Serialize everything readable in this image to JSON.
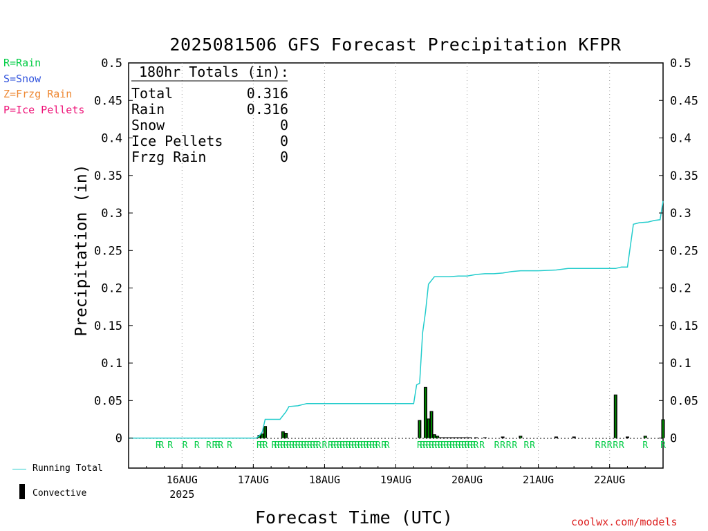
{
  "title": "2025081506 GFS Forecast Precipitation KFPR",
  "key": {
    "rain": "R=Rain",
    "snow": "S=Snow",
    "frzg": "Z=Frzg Rain",
    "ice": "P=Ice Pellets"
  },
  "colors": {
    "running_total": "#22cccc",
    "convective": "#000000",
    "total_precip_bar": "#008800",
    "rain_marker": "#00cc44",
    "grid": "#999999",
    "credit": "#dd2222"
  },
  "legend": {
    "running_total": "Running Total",
    "convective": "Convective"
  },
  "credit": "coolwx.com/models",
  "chart_data": {
    "type": "bar",
    "title": "2025081506 GFS Forecast Precipitation KFPR",
    "xlabel": "Forecast Time (UTC)",
    "ylabel": "Precipitation (in)",
    "ylim": [
      -0.04,
      0.5
    ],
    "yticks": [
      0,
      0.05,
      0.1,
      0.15,
      0.2,
      0.25,
      0.3,
      0.35,
      0.4,
      0.45,
      0.5
    ],
    "ytick_labels": [
      "0",
      "0.05",
      "0.1",
      "0.15",
      "0.2",
      "0.25",
      "0.3",
      "0.35",
      "0.4",
      "0.45",
      "0.5"
    ],
    "x_unit": "forecast hour",
    "xlim": [
      0,
      180
    ],
    "xticks": [
      18,
      42,
      66,
      90,
      114,
      138,
      162
    ],
    "xtick_labels": [
      "16AUG",
      "17AUG",
      "18AUG",
      "19AUG",
      "20AUG",
      "21AUG",
      "22AUG"
    ],
    "xtick_sublabel": "2025",
    "grid": "vertical dotted",
    "totals": {
      "header": "180hr Totals (in):",
      "rows": [
        {
          "label": "Total",
          "value": "0.316"
        },
        {
          "label": "Rain",
          "value": "0.316"
        },
        {
          "label": "Snow",
          "value": "0"
        },
        {
          "label": "Ice Pellets",
          "value": "0"
        },
        {
          "label": "Frzg Rain",
          "value": "0"
        }
      ]
    },
    "series": [
      {
        "name": "Running Total",
        "type": "line",
        "x": [
          0,
          43,
          44,
          45,
          46,
          51,
          53,
          54,
          57,
          60,
          66,
          72,
          90,
          96,
          97,
          98,
          99,
          100,
          101,
          102,
          103,
          104,
          105,
          108,
          111,
          114,
          117,
          120,
          121,
          123,
          126,
          129,
          132,
          138,
          144,
          148,
          150,
          154,
          156,
          160,
          162,
          164,
          166,
          168,
          170,
          172,
          175,
          177,
          179,
          180
        ],
        "y": [
          0,
          0,
          0.003,
          0.008,
          0.025,
          0.025,
          0.035,
          0.042,
          0.043,
          0.046,
          0.046,
          0.046,
          0.046,
          0.046,
          0.071,
          0.073,
          0.14,
          0.168,
          0.205,
          0.21,
          0.215,
          0.215,
          0.215,
          0.215,
          0.216,
          0.216,
          0.218,
          0.219,
          0.219,
          0.219,
          0.22,
          0.222,
          0.223,
          0.223,
          0.224,
          0.226,
          0.226,
          0.226,
          0.226,
          0.226,
          0.226,
          0.226,
          0.228,
          0.228,
          0.285,
          0.287,
          0.288,
          0.29,
          0.291,
          0.316
        ]
      },
      {
        "name": "Convective",
        "type": "bar",
        "x": [
          44,
          45,
          46,
          52,
          53,
          98,
          100,
          101,
          102,
          103,
          104,
          105,
          106,
          107,
          108,
          109,
          110,
          111,
          112,
          113,
          114,
          115,
          117,
          120,
          126,
          132,
          144,
          150,
          164,
          168,
          174,
          180
        ],
        "y": [
          0.004,
          0.006,
          0.016,
          0.009,
          0.007,
          0.024,
          0.068,
          0.026,
          0.036,
          0.005,
          0.003,
          0.001,
          0.001,
          0.001,
          0.001,
          0.001,
          0.001,
          0.001,
          0.001,
          0.001,
          0.001,
          0.001,
          0.001,
          0.001,
          0.002,
          0.003,
          0.002,
          0.002,
          0.058,
          0.002,
          0.003,
          0.025
        ]
      }
    ],
    "type_markers": {
      "label": "R",
      "x": [
        10,
        11,
        14,
        19,
        23,
        27,
        29,
        30,
        31,
        34,
        44,
        45,
        46,
        49,
        50,
        51,
        52,
        53,
        54,
        55,
        56,
        57,
        58,
        59,
        60,
        61,
        62,
        63,
        64,
        66,
        68,
        69,
        70,
        71,
        72,
        73,
        74,
        75,
        76,
        77,
        78,
        79,
        80,
        81,
        82,
        83,
        84,
        86,
        87,
        98,
        99,
        100,
        101,
        102,
        103,
        104,
        105,
        106,
        107,
        108,
        109,
        110,
        111,
        112,
        113,
        114,
        115,
        116,
        117,
        119,
        124,
        126,
        128,
        130,
        134,
        136,
        158,
        160,
        162,
        164,
        166,
        174,
        180
      ]
    }
  }
}
